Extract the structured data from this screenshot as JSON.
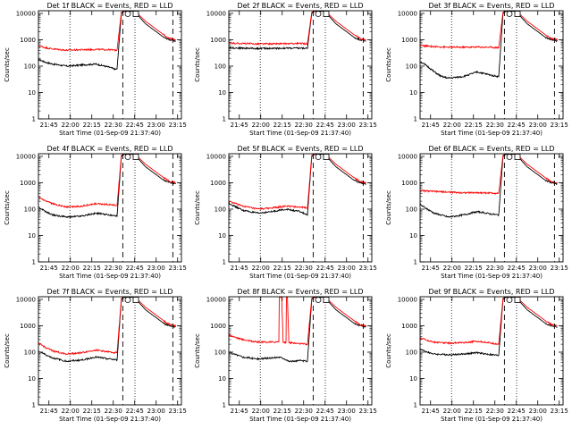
{
  "figure": {
    "background": "#ffffff",
    "black_color": "#000000",
    "red_color": "#ff0000"
  },
  "chart_data": [
    {
      "type": "line",
      "title": "Det 1f BLACK = Events, RED = LLD",
      "xlabel": "Start Time (01-Sep-09 21:37:40)",
      "ylabel": "Counts/sec",
      "yscale": "log",
      "ylim": [
        1,
        10000
      ],
      "xlim_minutes": [
        0,
        100
      ],
      "x_ticks": [
        "21:45",
        "22:00",
        "22:15",
        "22:30",
        "22:45",
        "23:00",
        "23:15"
      ],
      "y_ticks": [
        "1",
        "10",
        "100",
        "1000",
        "10000"
      ],
      "vlines": {
        "dotted": [
          22,
          67.5
        ],
        "dashed": [
          59,
          94
        ]
      },
      "markers": {
        "circle": 62.5,
        "square": 65
      },
      "series": [
        {
          "color": "black",
          "x": [
            0,
            5,
            10,
            20,
            30,
            40,
            50,
            54,
            55,
            58,
            60,
            64,
            67,
            75,
            88,
            92,
            96
          ],
          "y": [
            180,
            140,
            120,
            100,
            110,
            120,
            90,
            75,
            80,
            10000,
            12000,
            12000,
            12000,
            4000,
            1200,
            1000,
            900
          ]
        },
        {
          "color": "red",
          "x": [
            0,
            5,
            10,
            20,
            30,
            40,
            50,
            54,
            55,
            58,
            60,
            64,
            67,
            75,
            88,
            92,
            96
          ],
          "y": [
            600,
            500,
            450,
            400,
            420,
            430,
            420,
            400,
            420,
            11000,
            13000,
            13000,
            13000,
            5000,
            1500,
            1100,
            1000
          ]
        }
      ]
    },
    {
      "type": "line",
      "title": "Det 2f BLACK = Events, RED = LLD",
      "xlabel": "Start Time (01-Sep-09 21:37:40)",
      "ylabel": "Counts/sec",
      "yscale": "log",
      "ylim": [
        1,
        10000
      ],
      "xlim_minutes": [
        0,
        100
      ],
      "x_ticks": [
        "21:45",
        "22:00",
        "22:15",
        "22:30",
        "22:45",
        "23:00",
        "23:15"
      ],
      "y_ticks": [
        "1",
        "10",
        "100",
        "1000",
        "10000"
      ],
      "vlines": {
        "dotted": [
          22,
          67.5
        ],
        "dashed": [
          59,
          94
        ]
      },
      "markers": {
        "circle": 62.5,
        "square": 65
      },
      "series": [
        {
          "color": "black",
          "x": [
            0,
            10,
            20,
            30,
            40,
            50,
            55,
            58,
            60,
            64,
            67,
            75,
            88,
            92,
            96
          ],
          "y": [
            500,
            480,
            470,
            470,
            480,
            480,
            470,
            10000,
            12000,
            12000,
            12000,
            4000,
            1200,
            1000,
            900
          ]
        },
        {
          "color": "red",
          "x": [
            0,
            10,
            20,
            30,
            40,
            50,
            55,
            58,
            60,
            64,
            67,
            75,
            88,
            92,
            96
          ],
          "y": [
            750,
            720,
            700,
            700,
            710,
            720,
            700,
            11000,
            13000,
            13000,
            13000,
            5000,
            1500,
            1100,
            1000
          ]
        }
      ]
    },
    {
      "type": "line",
      "title": "Det 3f BLACK = Events, RED = LLD",
      "xlabel": "Start Time (01-Sep-09 21:37:40)",
      "ylabel": "Counts/sec",
      "yscale": "log",
      "ylim": [
        1,
        10000
      ],
      "xlim_minutes": [
        0,
        100
      ],
      "x_ticks": [
        "21:45",
        "22:00",
        "22:15",
        "22:30",
        "22:45",
        "23:00",
        "23:15"
      ],
      "y_ticks": [
        "1",
        "10",
        "100",
        "1000",
        "10000"
      ],
      "vlines": {
        "dotted": [
          22,
          67.5
        ],
        "dashed": [
          59,
          94
        ]
      },
      "markers": {
        "circle": 62.5,
        "square": 65
      },
      "series": [
        {
          "color": "black",
          "x": [
            0,
            5,
            10,
            15,
            20,
            30,
            40,
            50,
            55,
            58,
            60,
            64,
            67,
            75,
            88,
            92,
            96
          ],
          "y": [
            150,
            100,
            60,
            40,
            35,
            40,
            60,
            45,
            40,
            10000,
            12000,
            12000,
            12000,
            4000,
            1200,
            1000,
            900
          ]
        },
        {
          "color": "red",
          "x": [
            0,
            10,
            20,
            30,
            40,
            50,
            55,
            58,
            60,
            64,
            67,
            75,
            88,
            92,
            96
          ],
          "y": [
            600,
            550,
            520,
            520,
            530,
            520,
            500,
            11000,
            13000,
            13000,
            13000,
            5000,
            1500,
            1100,
            1000
          ]
        }
      ]
    },
    {
      "type": "line",
      "title": "Det 4f BLACK = Events, RED = LLD",
      "xlabel": "Start Time (01-Sep-09 21:37:40)",
      "ylabel": "Counts/sec",
      "yscale": "log",
      "ylim": [
        1,
        10000
      ],
      "xlim_minutes": [
        0,
        100
      ],
      "x_ticks": [
        "21:45",
        "22:00",
        "22:15",
        "22:30",
        "22:45",
        "23:00",
        "23:15"
      ],
      "y_ticks": [
        "1",
        "10",
        "100",
        "1000",
        "10000"
      ],
      "vlines": {
        "dotted": [
          22,
          67.5
        ],
        "dashed": [
          59,
          94
        ]
      },
      "markers": {
        "circle": 62.5,
        "square": 65
      },
      "series": [
        {
          "color": "black",
          "x": [
            0,
            5,
            10,
            20,
            30,
            40,
            50,
            55,
            58,
            60,
            64,
            67,
            75,
            88,
            92,
            96
          ],
          "y": [
            120,
            80,
            60,
            50,
            55,
            70,
            60,
            55,
            10000,
            12000,
            12000,
            12000,
            4000,
            1200,
            1000,
            900
          ]
        },
        {
          "color": "red",
          "x": [
            0,
            5,
            10,
            20,
            30,
            40,
            50,
            55,
            58,
            60,
            64,
            67,
            75,
            88,
            92,
            96
          ],
          "y": [
            280,
            200,
            160,
            120,
            130,
            160,
            150,
            140,
            11000,
            13000,
            13000,
            13000,
            5000,
            1500,
            1100,
            1000
          ]
        }
      ]
    },
    {
      "type": "line",
      "title": "Det 5f BLACK = Events, RED = LLD",
      "xlabel": "Start Time (01-Sep-09 21:37:40)",
      "ylabel": "Counts/sec",
      "yscale": "log",
      "ylim": [
        1,
        10000
      ],
      "xlim_minutes": [
        0,
        100
      ],
      "x_ticks": [
        "21:45",
        "22:00",
        "22:15",
        "22:30",
        "22:45",
        "23:00",
        "23:15"
      ],
      "y_ticks": [
        "1",
        "10",
        "100",
        "1000",
        "10000"
      ],
      "vlines": {
        "dotted": [
          22,
          67.5
        ],
        "dashed": [
          59,
          94
        ]
      },
      "markers": {
        "circle": 62.5,
        "square": 65
      },
      "series": [
        {
          "color": "black",
          "x": [
            0,
            5,
            10,
            20,
            30,
            40,
            50,
            55,
            58,
            60,
            64,
            67,
            75,
            88,
            92,
            96
          ],
          "y": [
            170,
            120,
            90,
            70,
            80,
            100,
            80,
            60,
            10000,
            12000,
            12000,
            12000,
            4000,
            1200,
            1000,
            900
          ]
        },
        {
          "color": "red",
          "x": [
            0,
            5,
            10,
            20,
            30,
            40,
            50,
            55,
            58,
            60,
            64,
            67,
            75,
            88,
            92,
            96
          ],
          "y": [
            200,
            160,
            130,
            100,
            110,
            130,
            120,
            110,
            11000,
            13000,
            13000,
            13000,
            5000,
            1500,
            1100,
            1000
          ]
        }
      ]
    },
    {
      "type": "line",
      "title": "Det 6f BLACK = Events, RED = LLD",
      "xlabel": "Start Time (01-Sep-09 21:37:40)",
      "ylabel": "Counts/sec",
      "yscale": "log",
      "ylim": [
        1,
        10000
      ],
      "xlim_minutes": [
        0,
        100
      ],
      "x_ticks": [
        "21:45",
        "22:00",
        "22:15",
        "22:30",
        "22:45",
        "23:00",
        "23:15"
      ],
      "y_ticks": [
        "1",
        "10",
        "100",
        "1000",
        "10000"
      ],
      "vlines": {
        "dotted": [
          22,
          67.5
        ],
        "dashed": [
          59,
          94
        ]
      },
      "markers": {
        "circle": 62.5,
        "square": 65
      },
      "series": [
        {
          "color": "black",
          "x": [
            0,
            5,
            10,
            20,
            30,
            40,
            50,
            55,
            58,
            60,
            64,
            67,
            75,
            88,
            92,
            96
          ],
          "y": [
            150,
            100,
            70,
            50,
            60,
            80,
            65,
            60,
            10000,
            12000,
            12000,
            12000,
            4000,
            1200,
            1000,
            900
          ]
        },
        {
          "color": "red",
          "x": [
            0,
            10,
            20,
            30,
            40,
            50,
            55,
            58,
            60,
            64,
            67,
            75,
            88,
            92,
            96
          ],
          "y": [
            500,
            470,
            440,
            420,
            420,
            410,
            400,
            11000,
            13000,
            13000,
            13000,
            5000,
            1500,
            1100,
            1000
          ]
        }
      ]
    },
    {
      "type": "line",
      "title": "Det 7f BLACK = Events, RED = LLD",
      "xlabel": "Start Time (01-Sep-09 21:37:40)",
      "ylabel": "Counts/sec",
      "yscale": "log",
      "ylim": [
        1,
        10000
      ],
      "xlim_minutes": [
        0,
        100
      ],
      "x_ticks": [
        "21:45",
        "22:00",
        "22:15",
        "22:30",
        "22:45",
        "23:00",
        "23:15"
      ],
      "y_ticks": [
        "1",
        "10",
        "100",
        "1000",
        "10000"
      ],
      "vlines": {
        "dotted": [
          22,
          67.5
        ],
        "dashed": [
          59,
          94
        ]
      },
      "markers": {
        "circle": 62.5,
        "square": 65
      },
      "series": [
        {
          "color": "black",
          "x": [
            0,
            5,
            10,
            20,
            30,
            40,
            50,
            55,
            58,
            60,
            64,
            67,
            75,
            88,
            92,
            96
          ],
          "y": [
            110,
            80,
            60,
            45,
            50,
            65,
            55,
            50,
            10000,
            12000,
            12000,
            12000,
            4000,
            1200,
            1000,
            900
          ]
        },
        {
          "color": "red",
          "x": [
            0,
            5,
            10,
            20,
            30,
            40,
            50,
            55,
            58,
            60,
            64,
            67,
            75,
            88,
            92,
            96
          ],
          "y": [
            220,
            150,
            110,
            85,
            95,
            120,
            100,
            95,
            11000,
            13000,
            13000,
            13000,
            5000,
            1500,
            1100,
            1000
          ]
        }
      ]
    },
    {
      "type": "line",
      "title": "Det 8f BLACK = Events, RED = LLD",
      "xlabel": "Start Time (01-Sep-09 21:37:40)",
      "ylabel": "Counts/sec",
      "yscale": "log",
      "ylim": [
        1,
        10000
      ],
      "xlim_minutes": [
        0,
        100
      ],
      "x_ticks": [
        "21:45",
        "22:00",
        "22:15",
        "22:30",
        "22:45",
        "23:00",
        "23:15"
      ],
      "y_ticks": [
        "1",
        "10",
        "100",
        "1000",
        "10000"
      ],
      "vlines": {
        "dotted": [
          22,
          67.5
        ],
        "dashed": [
          59,
          94
        ]
      },
      "markers": {
        "circle": 62.5,
        "square": 65
      },
      "series": [
        {
          "color": "black",
          "x": [
            0,
            5,
            10,
            20,
            30,
            35,
            38,
            42,
            45,
            50,
            55,
            58,
            60,
            64,
            67,
            75,
            88,
            92,
            96
          ],
          "y": [
            100,
            80,
            65,
            55,
            60,
            65,
            60,
            45,
            45,
            48,
            45,
            10000,
            12000,
            12000,
            12000,
            4000,
            1200,
            1000,
            900
          ]
        },
        {
          "color": "red",
          "x": [
            0,
            5,
            10,
            20,
            30,
            35,
            35.3,
            36,
            37,
            38,
            40,
            40.3,
            41,
            42,
            45,
            50,
            55,
            58,
            60,
            64,
            67,
            75,
            88,
            92,
            96
          ],
          "y": [
            450,
            360,
            300,
            240,
            240,
            250,
            12000,
            12000,
            12000,
            240,
            230,
            12000,
            12000,
            230,
            220,
            210,
            200,
            11000,
            13000,
            13000,
            13000,
            5000,
            1500,
            1100,
            1000
          ]
        }
      ]
    },
    {
      "type": "line",
      "title": "Det 9f BLACK = Events, RED = LLD",
      "xlabel": "Start Time (01-Sep-09 21:37:40)",
      "ylabel": "Counts/sec",
      "yscale": "log",
      "ylim": [
        1,
        10000
      ],
      "xlim_minutes": [
        0,
        100
      ],
      "x_ticks": [
        "21:45",
        "22:00",
        "22:15",
        "22:30",
        "22:45",
        "23:00",
        "23:15"
      ],
      "y_ticks": [
        "1",
        "10",
        "100",
        "1000",
        "10000"
      ],
      "vlines": {
        "dotted": [
          22,
          67.5
        ],
        "dashed": [
          59,
          94
        ]
      },
      "markers": {
        "circle": 62.5,
        "square": 65
      },
      "series": [
        {
          "color": "black",
          "x": [
            0,
            5,
            10,
            20,
            30,
            40,
            50,
            55,
            58,
            60,
            64,
            67,
            75,
            88,
            92,
            96
          ],
          "y": [
            130,
            100,
            85,
            80,
            85,
            95,
            80,
            75,
            10000,
            12000,
            12000,
            12000,
            4000,
            1200,
            1000,
            900
          ]
        },
        {
          "color": "red",
          "x": [
            0,
            5,
            10,
            20,
            30,
            40,
            50,
            55,
            58,
            60,
            64,
            67,
            75,
            88,
            92,
            96
          ],
          "y": [
            350,
            280,
            240,
            220,
            230,
            260,
            220,
            200,
            11000,
            13000,
            13000,
            13000,
            5000,
            1500,
            1100,
            1000
          ]
        }
      ]
    }
  ]
}
